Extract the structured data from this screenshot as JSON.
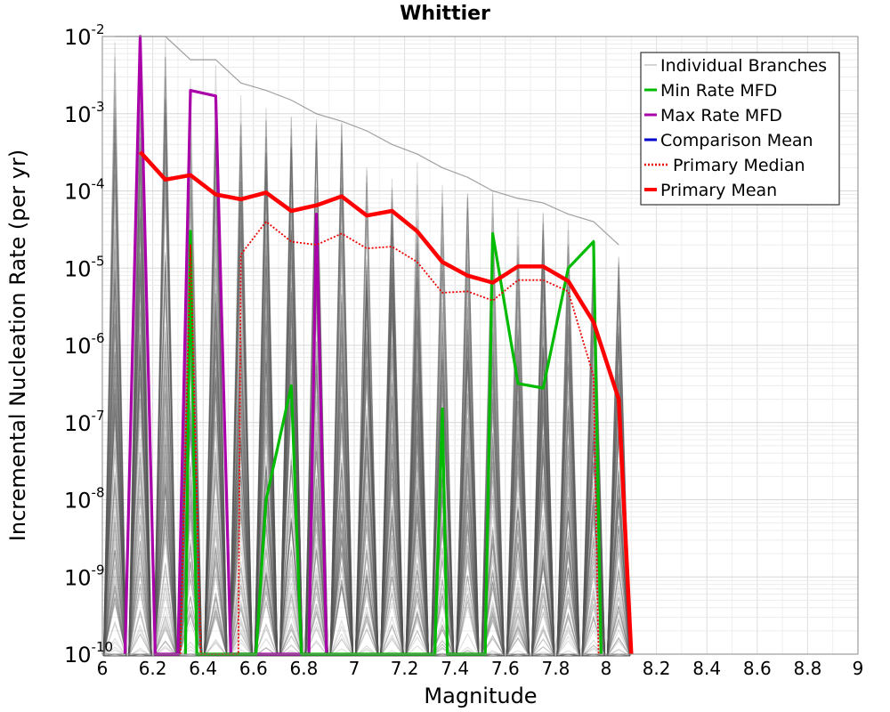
{
  "chart_data": {
    "type": "line",
    "title": "Whittier",
    "xlabel": "Magnitude",
    "ylabel": "Incremental Nucleation Rate (per yr)",
    "x_scale": "linear",
    "y_scale": "log",
    "xlim": [
      6,
      9
    ],
    "ylim": [
      1e-10,
      0.01
    ],
    "x_ticks": [
      "6",
      "6.2",
      "6.4",
      "6.6",
      "6.8",
      "7",
      "7.2",
      "7.4",
      "7.6",
      "7.8",
      "8",
      "8.2",
      "8.4",
      "8.6",
      "8.8",
      "9"
    ],
    "y_ticks": [
      {
        "base": "10",
        "exp": "-10"
      },
      {
        "base": "10",
        "exp": "-9"
      },
      {
        "base": "10",
        "exp": "-8"
      },
      {
        "base": "10",
        "exp": "-7"
      },
      {
        "base": "10",
        "exp": "-6"
      },
      {
        "base": "10",
        "exp": "-5"
      },
      {
        "base": "10",
        "exp": "-4"
      },
      {
        "base": "10",
        "exp": "-3"
      },
      {
        "base": "10",
        "exp": "-2"
      }
    ],
    "grid": true,
    "legend_position": "top-right",
    "series": [
      {
        "name": "Individual Branches",
        "color": "#555555",
        "style": "thin-translucent-band",
        "x": [
          6.05,
          6.15,
          6.25,
          6.35,
          6.45,
          6.55,
          6.65,
          6.75,
          6.85,
          6.95,
          7.05,
          7.15,
          7.25,
          7.35,
          7.45,
          7.55,
          7.65,
          7.75,
          7.85,
          7.95,
          8.05
        ],
        "y_max": [
          0.01,
          0.01,
          0.01,
          0.005,
          0.005,
          0.0025,
          0.002,
          0.0015,
          0.001,
          0.0008,
          0.0006,
          0.0004,
          0.0003,
          0.0002,
          0.00015,
          0.0001,
          8e-05,
          7e-05,
          5e-05,
          4e-05,
          2e-05
        ]
      },
      {
        "name": "Min Rate MFD",
        "color": "#00bb00",
        "style": "solid",
        "x": [
          6.33,
          6.35,
          6.375,
          6.61,
          6.65,
          6.75,
          6.79,
          7.32,
          7.35,
          7.37,
          7.52,
          7.55,
          7.65,
          7.75,
          7.85,
          7.95,
          7.98
        ],
        "y": [
          1e-10,
          3e-05,
          1e-10,
          1e-10,
          1e-08,
          3e-07,
          1e-10,
          1e-10,
          1.5e-07,
          1e-10,
          1e-10,
          2.8e-05,
          3.2e-07,
          2.8e-07,
          1e-05,
          2.2e-05,
          1e-10
        ]
      },
      {
        "name": "Max Rate MFD",
        "color": "#aa00aa",
        "style": "solid",
        "x": [
          6.09,
          6.15,
          6.21,
          6.3,
          6.35,
          6.45,
          6.51,
          6.82,
          6.85,
          6.89
        ],
        "y": [
          1e-10,
          0.01,
          1e-10,
          1e-10,
          0.002,
          0.0017,
          1e-10,
          1e-10,
          5e-05,
          1e-10
        ]
      },
      {
        "name": "Comparison Mean",
        "color": "#0000cc",
        "style": "solid",
        "x": [],
        "y": []
      },
      {
        "name": "Primary Median",
        "color": "#ee0000",
        "style": "dotted",
        "x": [
          6.31,
          6.35,
          6.39,
          6.54,
          6.55,
          6.65,
          6.75,
          6.85,
          6.95,
          7.05,
          7.15,
          7.25,
          7.35,
          7.45,
          7.55,
          7.65,
          7.75,
          7.85,
          7.95,
          7.97
        ],
        "y": [
          1e-10,
          2e-05,
          1e-10,
          1e-10,
          1.5e-05,
          4e-05,
          2.2e-05,
          2e-05,
          2.8e-05,
          1.8e-05,
          1.9e-05,
          1.2e-05,
          4.8e-06,
          5e-06,
          3.8e-06,
          7e-06,
          7e-06,
          5e-06,
          4e-07,
          1e-10
        ]
      },
      {
        "name": "Primary Mean",
        "color": "#ff0000",
        "style": "thick",
        "x": [
          6.15,
          6.25,
          6.35,
          6.45,
          6.55,
          6.65,
          6.75,
          6.85,
          6.95,
          7.05,
          7.15,
          7.25,
          7.35,
          7.45,
          7.55,
          7.65,
          7.75,
          7.85,
          7.95,
          8.05,
          8.1
        ],
        "y": [
          0.00032,
          0.00014,
          0.00016,
          9e-05,
          7.8e-05,
          9.5e-05,
          5.5e-05,
          6.5e-05,
          8.5e-05,
          4.8e-05,
          5.5e-05,
          3e-05,
          1.2e-05,
          8e-06,
          6.5e-06,
          1.05e-05,
          1.05e-05,
          6.8e-06,
          2e-06,
          2e-07,
          1e-10
        ]
      }
    ]
  }
}
